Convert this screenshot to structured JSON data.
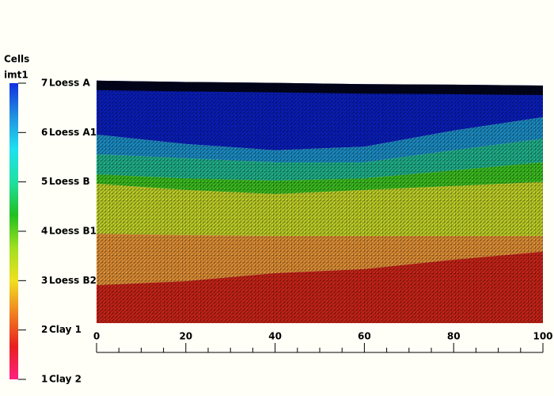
{
  "chart_data": {
    "type": "layered-mesh",
    "colorbar": {
      "title": "Cells",
      "subtitle": "imt1",
      "ticks": [
        7,
        6,
        5,
        4,
        3,
        2,
        1
      ],
      "colors": [
        "#ff2080",
        "#e82020",
        "#f08020",
        "#f0e020",
        "#a0e020",
        "#20c020",
        "#20e0a0",
        "#20e0f0",
        "#2090e0",
        "#1030e0"
      ]
    },
    "x": [
      0,
      20,
      40,
      60,
      80,
      100
    ],
    "series": [
      {
        "name": "Loess A",
        "color": "#0a1fc0",
        "values": [
          54.3,
          54.0,
          53.8,
          53.5,
          53.4,
          53.2
        ]
      },
      {
        "name": "Loess A1",
        "color": "#1c8fc8",
        "values": [
          42.2,
          40.1,
          38.7,
          39.5,
          43.1,
          46.1
        ]
      },
      {
        "name": "Loess B",
        "color": "#20b48c",
        "values": [
          37.8,
          36.9,
          36.0,
          36.0,
          38.7,
          41.3
        ]
      },
      {
        "name": "Loess B1",
        "color": "#3cc020",
        "values": [
          33.3,
          32.4,
          31.9,
          32.4,
          34.2,
          36.0
        ]
      },
      {
        "name": "Loess B2",
        "color": "#c2d428",
        "values": [
          31.2,
          29.8,
          28.9,
          29.8,
          30.7,
          31.6
        ]
      },
      {
        "name": "Clay 1",
        "color": "#e49236",
        "values": [
          20.0,
          19.7,
          19.5,
          19.5,
          19.5,
          19.5
        ]
      },
      {
        "name": "Clay 2",
        "color": "#cc2418",
        "values": [
          8.5,
          9.4,
          11.2,
          12.1,
          14.2,
          16.0
        ]
      }
    ],
    "xlim": [
      0,
      100
    ],
    "xticks": [
      0,
      20,
      40,
      60,
      80,
      100
    ],
    "ylim": [
      0,
      54.3
    ]
  }
}
